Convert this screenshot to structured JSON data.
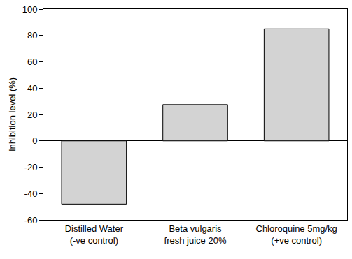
{
  "chart_data": {
    "type": "bar",
    "y_label": "Inhibition level (%)",
    "categories": [
      "Distilled Water\n(-ve control)",
      "Beta vulgaris\nfresh juice 20%",
      "Chloroquine 5mg/kg\n(+ve control)"
    ],
    "values": [
      -48,
      27.5,
      85
    ],
    "color": "#d3d3d3",
    "ylim": [
      -60,
      100
    ],
    "yticks": [
      -60,
      -40,
      -20,
      0,
      20,
      40,
      60,
      80,
      100
    ],
    "grid": false
  }
}
